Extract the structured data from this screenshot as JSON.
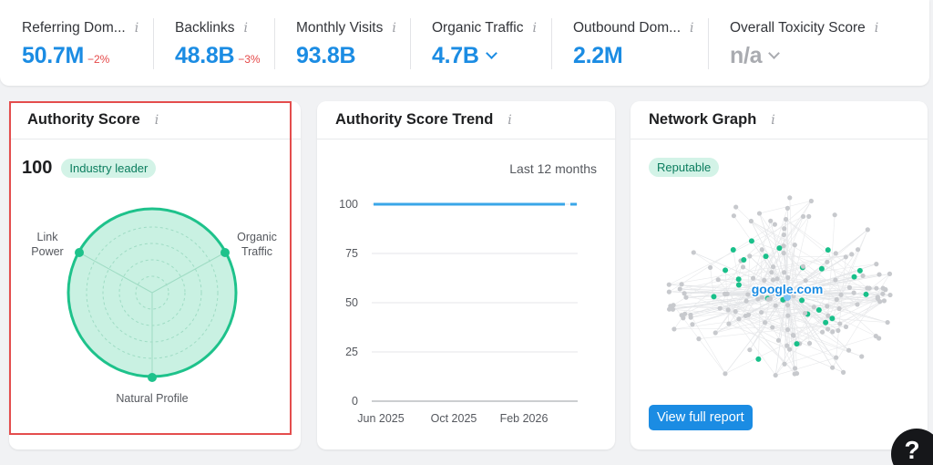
{
  "metrics": [
    {
      "label": "Referring Dom...",
      "value": "50.7M",
      "delta": "−2%",
      "chevron": false,
      "grey": false
    },
    {
      "label": "Backlinks",
      "value": "48.8B",
      "delta": "−3%",
      "chevron": false,
      "grey": false
    },
    {
      "label": "Monthly Visits",
      "value": "93.8B",
      "delta": "",
      "chevron": false,
      "grey": false
    },
    {
      "label": "Organic Traffic",
      "value": "4.7B",
      "delta": "",
      "chevron": true,
      "grey": false
    },
    {
      "label": "Outbound Dom...",
      "value": "2.2M",
      "delta": "",
      "chevron": false,
      "grey": false
    },
    {
      "label": "Overall Toxicity Score",
      "value": "n/a",
      "delta": "",
      "chevron": true,
      "grey": true
    }
  ],
  "authority": {
    "title": "Authority Score",
    "score": "100",
    "badge": "Industry leader",
    "labels": {
      "link_power": "Link\nPower",
      "organic_traffic": "Organic\nTraffic",
      "natural_profile": "Natural Profile"
    },
    "accent": "#1ec28b"
  },
  "trend": {
    "title": "Authority Score Trend",
    "period": "Last 12 months"
  },
  "chart_data": {
    "type": "line",
    "x": [
      "Jun 2025",
      "Oct 2025",
      "Feb 2026"
    ],
    "series": [
      {
        "values": [
          100,
          100,
          100
        ]
      }
    ],
    "ylim": [
      0,
      100
    ],
    "yticks": [
      100,
      75,
      50,
      25,
      0
    ],
    "color": "#3aa6e8"
  },
  "network": {
    "title": "Network Graph",
    "badge": "Reputable",
    "center_label": "google.com",
    "button": "View full report"
  },
  "help": {
    "label": "?"
  }
}
